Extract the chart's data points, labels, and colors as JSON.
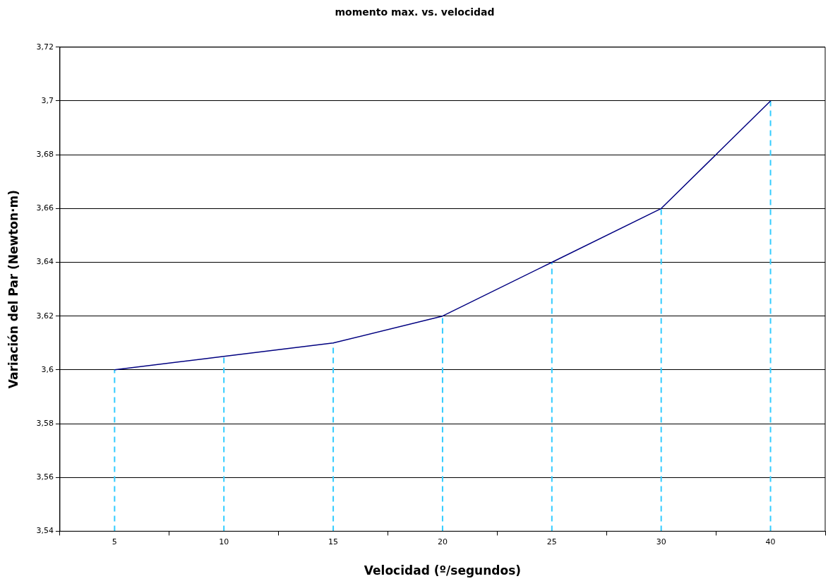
{
  "chart_data": {
    "type": "line",
    "title": "momento max. vs. velocidad",
    "xlabel": "Velocidad (º/segundos)",
    "ylabel": "Variación del Par (Newton·m)",
    "categories": [
      "5",
      "10",
      "15",
      "20",
      "25",
      "30",
      "40"
    ],
    "series": [
      {
        "color": "#000080",
        "values": [
          3.6,
          3.605,
          3.61,
          3.62,
          3.64,
          3.66,
          3.7
        ],
        "errors": [
          [
            3.54,
            3.6
          ],
          [
            3.54,
            3.605
          ],
          [
            3.54,
            3.61
          ],
          [
            3.54,
            3.62
          ],
          [
            3.54,
            3.64
          ],
          [
            3.54,
            3.66
          ],
          [
            3.54,
            3.7
          ]
        ]
      }
    ],
    "ylim": [
      3.54,
      3.72
    ],
    "yticks": [
      {
        "value": 3.54,
        "label": "3,54"
      },
      {
        "value": 3.56,
        "label": "3,56"
      },
      {
        "value": 3.58,
        "label": "3,58"
      },
      {
        "value": 3.6,
        "label": "3,6"
      },
      {
        "value": 3.62,
        "label": "3,62"
      },
      {
        "value": 3.64,
        "label": "3,64"
      },
      {
        "value": 3.66,
        "label": "3,66"
      },
      {
        "value": 3.68,
        "label": "3,68"
      },
      {
        "value": 3.7,
        "label": "3,7"
      },
      {
        "value": 3.72,
        "label": "3,72"
      }
    ],
    "grid": "y",
    "legend": false,
    "marker": "none",
    "line_style": "solid"
  }
}
